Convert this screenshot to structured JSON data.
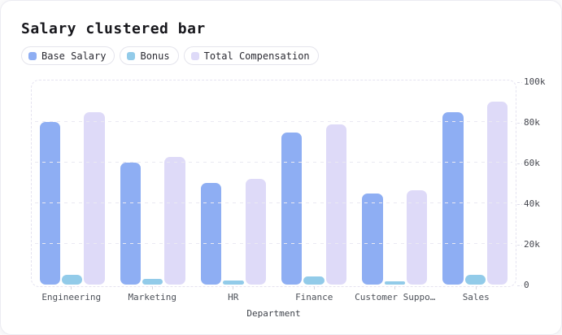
{
  "header": {
    "title": "Salary clustered bar"
  },
  "chart_data": {
    "type": "bar",
    "title": "Salary clustered bar",
    "xlabel": "Department",
    "ylabel": "",
    "categories": [
      "Engineering",
      "Marketing",
      "HR",
      "Finance",
      "Customer Support",
      "Sales"
    ],
    "category_display_labels": [
      "Engineering",
      "Marketing",
      "HR",
      "Finance",
      "Customer Suppo…",
      "Sales"
    ],
    "series": [
      {
        "name": "Base Salary",
        "color": "#8eaef3",
        "values": [
          80000,
          60000,
          50000,
          75000,
          45000,
          85000
        ]
      },
      {
        "name": "Bonus",
        "color": "#92cbe9",
        "values": [
          5000,
          3000,
          2000,
          4000,
          1500,
          5000
        ]
      },
      {
        "name": "Total Compensation",
        "color": "#dedaf8",
        "values": [
          85000,
          63000,
          52000,
          79000,
          46500,
          90000
        ]
      }
    ],
    "ylim": [
      0,
      100000
    ],
    "y_ticks": [
      {
        "value": 0,
        "label": "0"
      },
      {
        "value": 20000,
        "label": "20k"
      },
      {
        "value": 40000,
        "label": "40k"
      },
      {
        "value": 60000,
        "label": "60k"
      },
      {
        "value": 80000,
        "label": "80k"
      },
      {
        "value": 100000,
        "label": "100k"
      }
    ],
    "grid": true,
    "grid_style": "dashed",
    "legend_position": "top"
  }
}
